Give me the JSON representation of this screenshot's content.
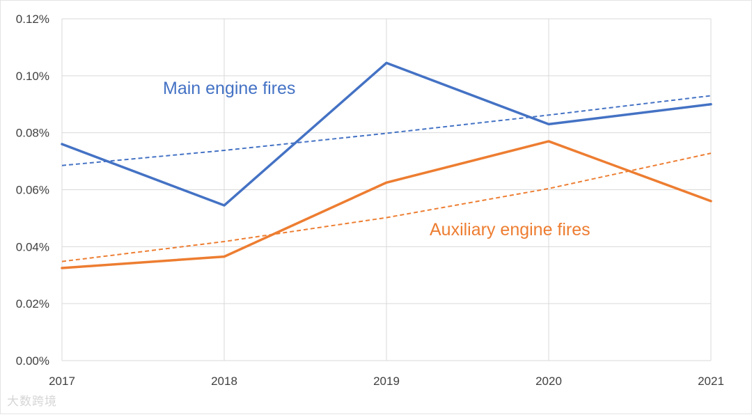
{
  "chart_data": {
    "type": "line",
    "title": "",
    "xlabel": "",
    "ylabel": "",
    "x": [
      "2017",
      "2018",
      "2019",
      "2020",
      "2021"
    ],
    "ylim": [
      0,
      0.12
    ],
    "yticks": [
      0.0,
      0.02,
      0.04,
      0.06,
      0.08,
      0.1,
      0.12
    ],
    "ytick_labels": [
      "0.00%",
      "0.02%",
      "0.04%",
      "0.06%",
      "0.08%",
      "0.10%",
      "0.12%"
    ],
    "grid": "on",
    "legend": "inline labels",
    "series": [
      {
        "name": "Main engine fires",
        "color": "#4472C4",
        "values": [
          0.076,
          0.0545,
          0.1045,
          0.083,
          0.09
        ],
        "trendline": {
          "style": "dashed",
          "values": [
            0.0685,
            0.0738,
            0.0798,
            0.0862,
            0.093
          ]
        }
      },
      {
        "name": "Auxiliary engine fires",
        "color": "#ED7D31",
        "values": [
          0.0325,
          0.0365,
          0.0625,
          0.077,
          0.056
        ],
        "trendline": {
          "style": "dashed",
          "values": [
            0.0348,
            0.0418,
            0.0502,
            0.0604,
            0.0728
          ]
        }
      }
    ]
  },
  "watermark": {
    "text": "大数跨境"
  }
}
